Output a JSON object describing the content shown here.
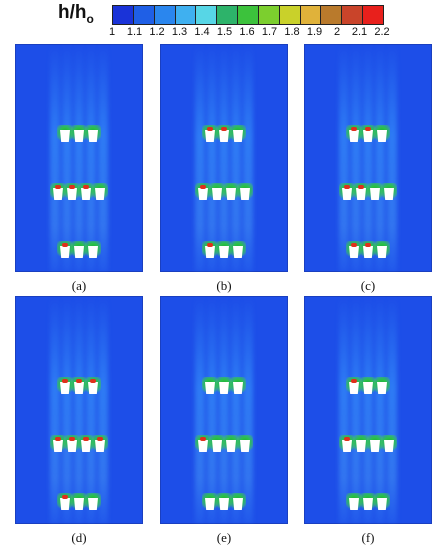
{
  "colorbar": {
    "title": "h/h",
    "title_sub": "o",
    "ticks": [
      "1",
      "1.1",
      "1.2",
      "1.3",
      "1.4",
      "1.5",
      "1.6",
      "1.7",
      "1.8",
      "1.9",
      "2",
      "2.1",
      "2.2"
    ],
    "colors": [
      "#1a33d8",
      "#1f5fe6",
      "#2a86ee",
      "#3fb0f0",
      "#57d6e6",
      "#2db36a",
      "#3cc23c",
      "#7ccf2e",
      "#c9d12a",
      "#e0b23a",
      "#b97a2c",
      "#c9442a",
      "#e8201c"
    ]
  },
  "panels": [
    {
      "label": "(a)",
      "rows": [
        3,
        4,
        3
      ],
      "hot": [
        0,
        3,
        1
      ]
    },
    {
      "label": "(b)",
      "rows": [
        3,
        4,
        3
      ],
      "hot": [
        2,
        1,
        1
      ]
    },
    {
      "label": "(c)",
      "rows": [
        3,
        4,
        3
      ],
      "hot": [
        2,
        2,
        2
      ]
    },
    {
      "label": "(d)",
      "rows": [
        3,
        4,
        3
      ],
      "hot": [
        3,
        4,
        1
      ]
    },
    {
      "label": "(e)",
      "rows": [
        3,
        4,
        3
      ],
      "hot": [
        0,
        1,
        0
      ]
    },
    {
      "label": "(f)",
      "rows": [
        3,
        4,
        3
      ],
      "hot": [
        1,
        1,
        0
      ]
    }
  ]
}
